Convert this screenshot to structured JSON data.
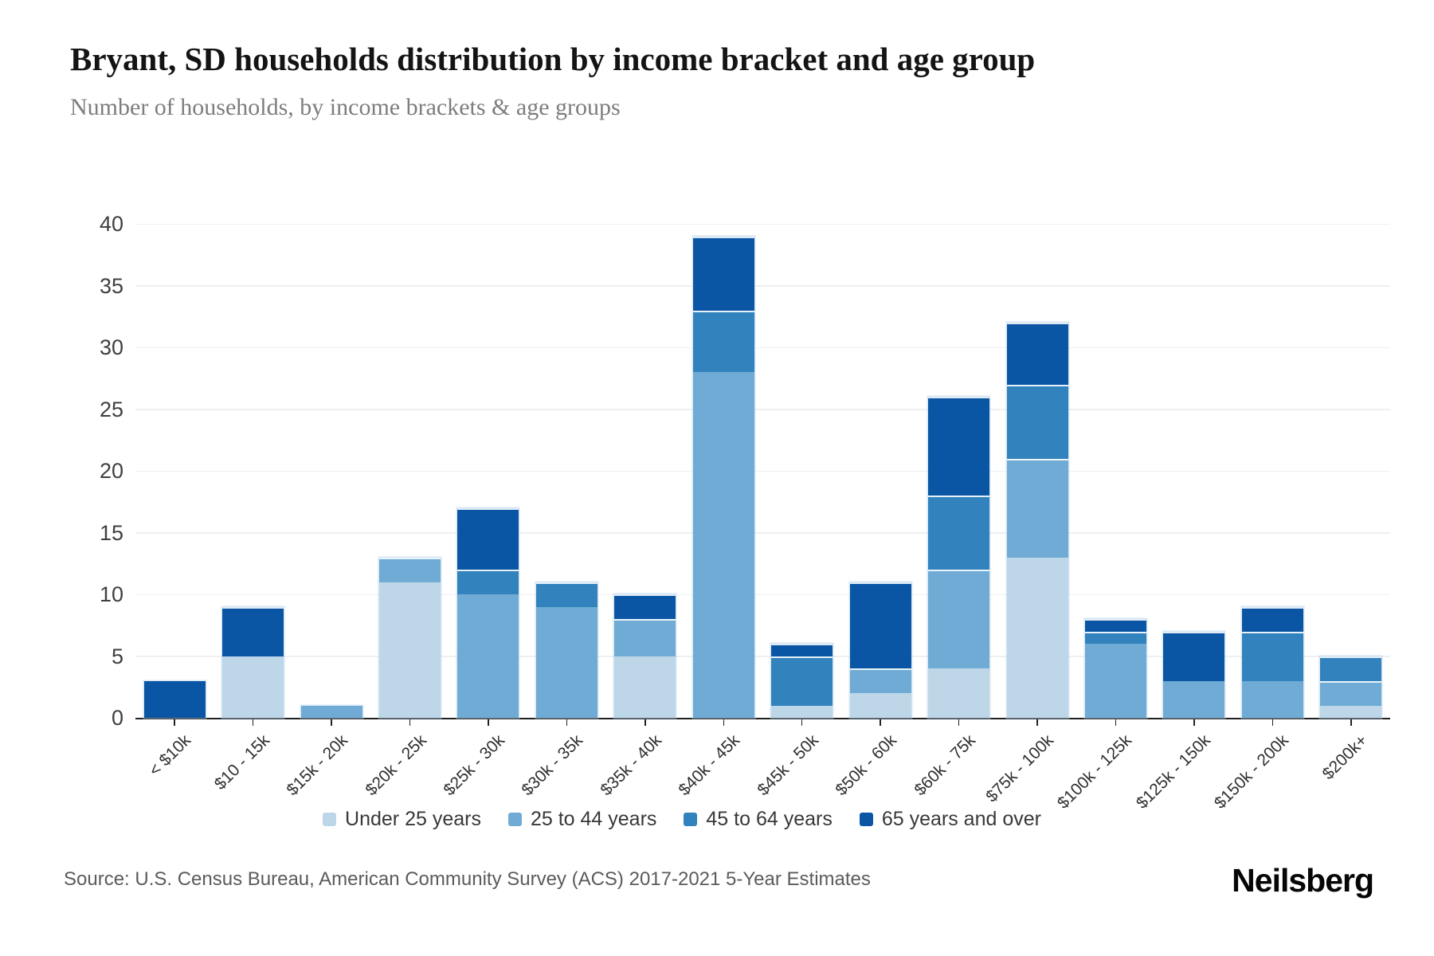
{
  "header": {
    "title": "Bryant, SD households distribution by income bracket and age group",
    "subtitle": "Number of households, by income brackets & age groups"
  },
  "chart_data": {
    "type": "bar",
    "stacked": true,
    "title": "Bryant, SD households distribution by income bracket and age group",
    "subtitle": "Number of households, by income brackets & age groups",
    "xlabel": "",
    "ylabel": "",
    "ylim": [
      0,
      40
    ],
    "y_ticks": [
      0,
      5,
      10,
      15,
      20,
      25,
      30,
      35,
      40
    ],
    "grid": true,
    "legend_position": "bottom",
    "categories": [
      "< $10k",
      "$10 - 15k",
      "$15k - 20k",
      "$20k - 25k",
      "$25k - 30k",
      "$30k - 35k",
      "$35k - 40k",
      "$40k - 45k",
      "$45k - 50k",
      "$50k - 60k",
      "$60k - 75k",
      "$75k - 100k",
      "$100k - 125k",
      "$125k - 150k",
      "$150k - 200k",
      "$200k+"
    ],
    "series": [
      {
        "name": "Under 25 years",
        "color": "#bdd7e8",
        "values": [
          0,
          5,
          0,
          11,
          0,
          0,
          5,
          0,
          1,
          2,
          4,
          13,
          0,
          0,
          0,
          1
        ]
      },
      {
        "name": "25 to 44 years",
        "color": "#6fabd5",
        "values": [
          0,
          0,
          1,
          2,
          10,
          9,
          3,
          28,
          0,
          2,
          8,
          8,
          6,
          3,
          3,
          2
        ]
      },
      {
        "name": "45 to 64 years",
        "color": "#3182bd",
        "values": [
          0,
          0,
          0,
          0,
          2,
          2,
          0,
          5,
          4,
          0,
          6,
          6,
          1,
          0,
          4,
          2
        ]
      },
      {
        "name": "65 years and over",
        "color": "#0b56a4",
        "values": [
          3,
          4,
          0,
          0,
          5,
          0,
          2,
          6,
          1,
          7,
          8,
          5,
          1,
          4,
          2,
          0
        ]
      }
    ],
    "totals": [
      3,
      9,
      1,
      13,
      17,
      11,
      10,
      39,
      6,
      11,
      26,
      32,
      8,
      7,
      9,
      5
    ]
  },
  "footer": {
    "source": "Source: U.S. Census Bureau, American Community Survey (ACS) 2017-2021 5-Year Estimates",
    "brand": "Neilsberg"
  }
}
